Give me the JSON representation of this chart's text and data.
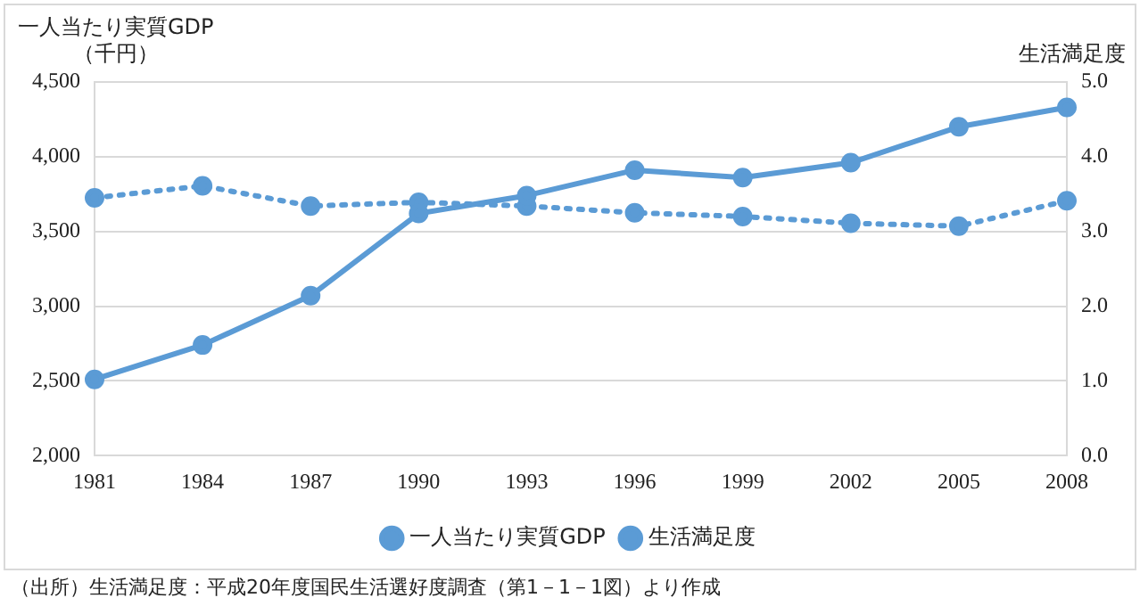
{
  "chart_data": {
    "type": "line",
    "ylabel": "一人当たり実質GDP\n（千円）",
    "y2label": "生活満足度",
    "categories": [
      "1981",
      "1984",
      "1987",
      "1990",
      "1993",
      "1996",
      "1999",
      "2002",
      "2005",
      "2008"
    ],
    "series": [
      {
        "name": "一人当たり実質GDP",
        "color": "#5b9bd5",
        "line_style": "solid",
        "values": [
          2510,
          2740,
          3070,
          3620,
          3740,
          3910,
          3860,
          3960,
          4200,
          4330
        ]
      },
      {
        "name": "生活満足度",
        "color": "#5b9bd5",
        "line_style": "dotted",
        "axis": "y2",
        "values": [
          3.45,
          3.61,
          3.34,
          3.39,
          3.34,
          3.25,
          3.2,
          3.11,
          3.07,
          3.41
        ]
      }
    ],
    "ylim": [
      2000,
      4500
    ],
    "yticks": [
      {
        "value": 2000,
        "label": "2,000"
      },
      {
        "value": 2500,
        "label": "2,500"
      },
      {
        "value": 3000,
        "label": "3,000"
      },
      {
        "value": 3500,
        "label": "3,500"
      },
      {
        "value": 4000,
        "label": "4,000"
      },
      {
        "value": 4500,
        "label": "4,500"
      }
    ],
    "y2lim": [
      0,
      5
    ],
    "y2ticks": [
      {
        "value": 0,
        "label": "0.0"
      },
      {
        "value": 1,
        "label": "1.0"
      },
      {
        "value": 2,
        "label": "2.0"
      },
      {
        "value": 3,
        "label": "3.0"
      },
      {
        "value": 4,
        "label": "4.0"
      },
      {
        "value": 5,
        "label": "5.0"
      }
    ],
    "grid": "y",
    "legend": "bottom",
    "marker": "circle",
    "annotations": [
      "（出所）生活満足度：平成20年度国民生活選好度調査（第1－1－1図）より作成"
    ]
  }
}
